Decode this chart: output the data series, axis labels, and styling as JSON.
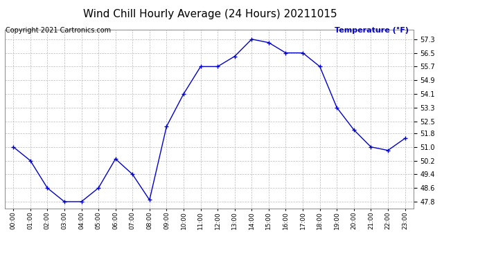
{
  "title": "Wind Chill Hourly Average (24 Hours) 20211015",
  "copyright": "Copyright 2021 Cartronics.com",
  "ylabel": "Temperature (°F)",
  "hours": [
    "00:00",
    "01:00",
    "02:00",
    "03:00",
    "04:00",
    "05:00",
    "06:00",
    "07:00",
    "08:00",
    "09:00",
    "10:00",
    "11:00",
    "12:00",
    "13:00",
    "14:00",
    "15:00",
    "16:00",
    "17:00",
    "18:00",
    "19:00",
    "20:00",
    "21:00",
    "22:00",
    "23:00"
  ],
  "values": [
    51.0,
    50.2,
    48.6,
    47.8,
    47.8,
    48.6,
    50.3,
    49.4,
    47.9,
    52.2,
    54.1,
    55.7,
    55.7,
    56.3,
    57.3,
    57.1,
    56.5,
    56.5,
    55.7,
    53.3,
    52.0,
    51.0,
    50.8,
    51.5
  ],
  "ylim_min": 47.4,
  "ylim_max": 57.85,
  "yticks": [
    47.8,
    48.6,
    49.4,
    50.2,
    51.0,
    51.8,
    52.5,
    53.3,
    54.1,
    54.9,
    55.7,
    56.5,
    57.3
  ],
  "line_color": "#0000cc",
  "marker": "+",
  "grid_color": "#bbbbbb",
  "background_color": "#ffffff",
  "title_fontsize": 11,
  "copyright_fontsize": 7,
  "ylabel_color": "#0000cc",
  "ylabel_fontsize": 8,
  "tick_fontsize": 7,
  "xtick_fontsize": 6.5
}
